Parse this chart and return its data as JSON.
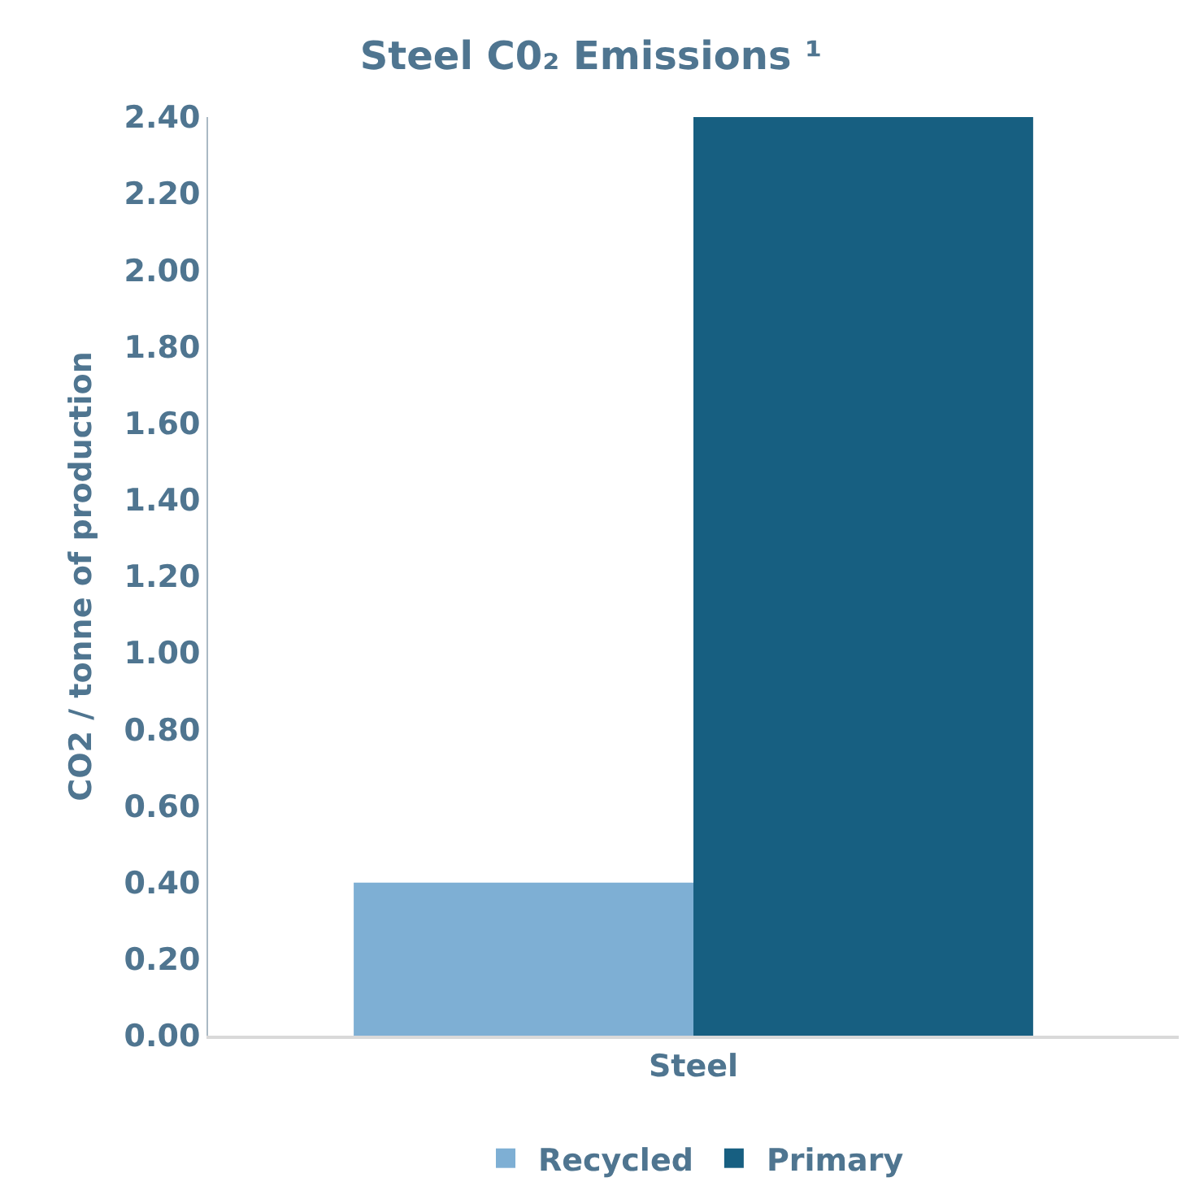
{
  "chart_data": {
    "type": "bar",
    "title": "Steel C0₂ Emissions ¹",
    "ylabel": "CO2 / tonne of production",
    "categories": [
      "Steel"
    ],
    "series": [
      {
        "name": "Recycled",
        "color": "#7eafd4",
        "values": [
          0.4
        ]
      },
      {
        "name": "Primary",
        "color": "#175f81",
        "values": [
          2.4
        ]
      }
    ],
    "ylim": [
      0,
      2.4
    ],
    "yticks": [
      {
        "value": 0,
        "label": "0.00"
      },
      {
        "value": 0.2,
        "label": "0.20"
      },
      {
        "value": 0.4,
        "label": "0.40"
      },
      {
        "value": 0.6,
        "label": "0.60"
      },
      {
        "value": 0.8,
        "label": "0.80"
      },
      {
        "value": 1.0,
        "label": "1.00"
      },
      {
        "value": 1.2,
        "label": "1.20"
      },
      {
        "value": 1.4,
        "label": "1.40"
      },
      {
        "value": 1.6,
        "label": "1.60"
      },
      {
        "value": 1.8,
        "label": "1.80"
      },
      {
        "value": 2.0,
        "label": "2.00"
      },
      {
        "value": 2.2,
        "label": "2.20"
      },
      {
        "value": 2.4,
        "label": "2.40"
      }
    ],
    "legend": "bottom"
  }
}
